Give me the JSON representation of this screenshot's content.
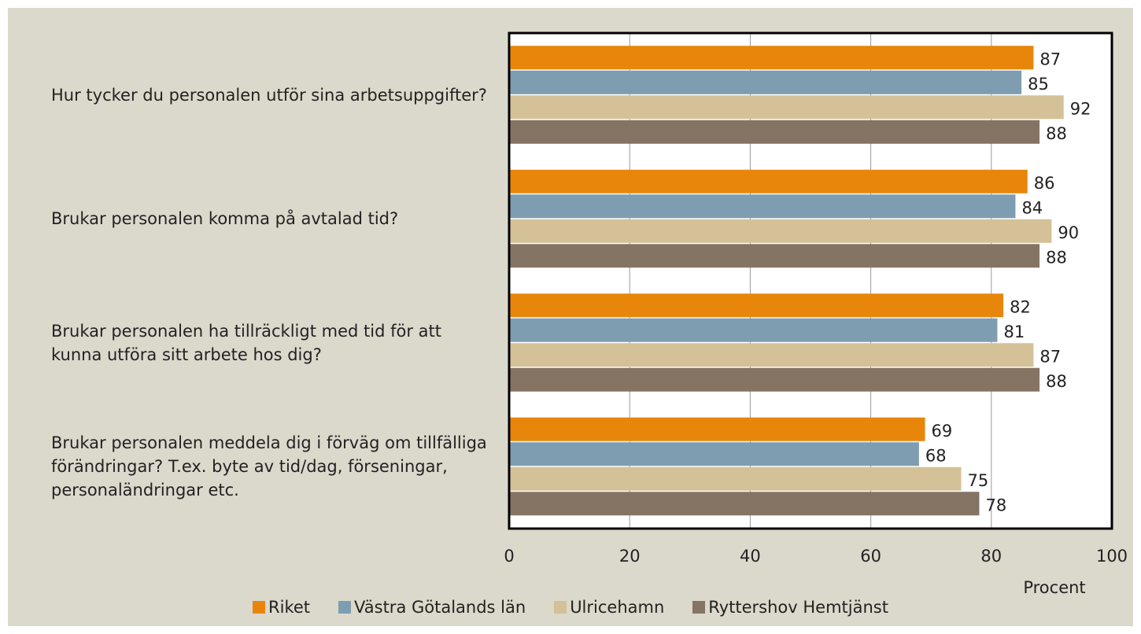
{
  "chart_data": {
    "type": "bar",
    "orientation": "horizontal",
    "categories": [
      "Hur tycker du personalen utför sina arbetsuppgifter?",
      "Brukar personalen komma på avtalad tid?",
      "Brukar personalen ha tillräckligt med tid för att kunna utföra sitt arbete hos dig?",
      "Brukar personalen meddela dig i förväg om tillfälliga förändringar? T.ex. byte av tid/dag, förseningar, personaländringar etc."
    ],
    "series": [
      {
        "name": "Riket",
        "color": "#e8860c",
        "values": [
          87,
          86,
          82,
          69
        ]
      },
      {
        "name": "Västra Götalands län",
        "color": "#7f9db0",
        "values": [
          85,
          84,
          81,
          68
        ]
      },
      {
        "name": "Ulricehamn",
        "color": "#d4c197",
        "values": [
          92,
          90,
          87,
          75
        ]
      },
      {
        "name": "Ryttershov Hemtjänst",
        "color": "#857464",
        "values": [
          88,
          88,
          88,
          78
        ]
      }
    ],
    "xlabel": "Procent",
    "xlim": [
      0,
      100
    ],
    "xticks": [
      0,
      20,
      40,
      60,
      80,
      100
    ],
    "grid": true
  }
}
